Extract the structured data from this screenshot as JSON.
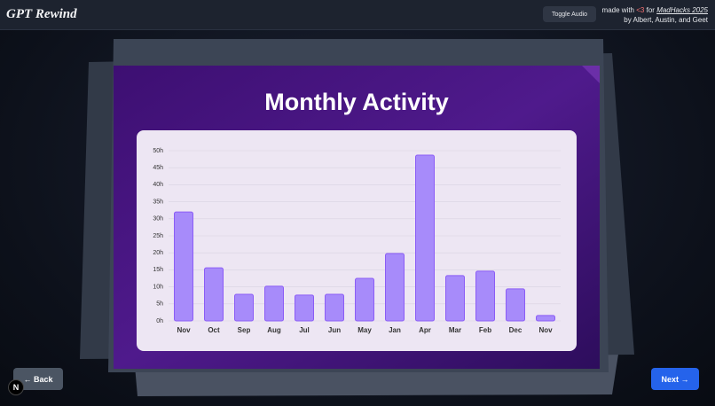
{
  "header": {
    "logo": "GPT Rewind",
    "audio_button": "Toggle Audio",
    "credit_prefix": "made with",
    "credit_heart": "<3",
    "credit_for": "for",
    "credit_link": "MadHacks 2025",
    "byline": "by Albert, Austin, and Geet"
  },
  "chart_data": {
    "type": "bar",
    "title": "Monthly Activity",
    "categories": [
      "Nov",
      "Oct",
      "Sep",
      "Aug",
      "Jul",
      "Jun",
      "May",
      "Jan",
      "Apr",
      "Mar",
      "Feb",
      "Dec",
      "Nov"
    ],
    "values": [
      32,
      15.6,
      7.8,
      10.2,
      7.6,
      7.8,
      12.5,
      19.8,
      48.7,
      13.3,
      14.6,
      9.4,
      1.6
    ],
    "color": "#a78bfa",
    "ylim": [
      0,
      50
    ],
    "yticks": [
      {
        "value": 0,
        "label": "0h"
      },
      {
        "value": 5,
        "label": "5h"
      },
      {
        "value": 10,
        "label": "10h"
      },
      {
        "value": 15,
        "label": "15h"
      },
      {
        "value": 20,
        "label": "20h"
      },
      {
        "value": 25,
        "label": "25h"
      },
      {
        "value": 30,
        "label": "30h"
      },
      {
        "value": 35,
        "label": "35h"
      },
      {
        "value": 40,
        "label": "40h"
      },
      {
        "value": 45,
        "label": "45h"
      },
      {
        "value": 50,
        "label": "50h"
      }
    ],
    "grid": true
  },
  "navigation": {
    "back": "← Back",
    "next": "Next →",
    "badge": "N"
  }
}
